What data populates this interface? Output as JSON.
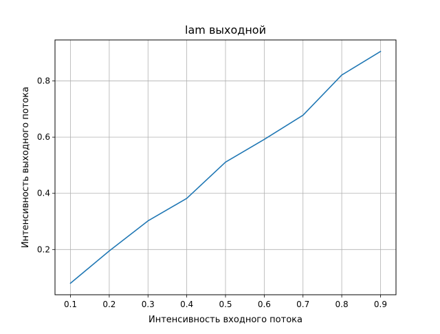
{
  "chart_data": {
    "type": "line",
    "title": "lam выходной",
    "xlabel": "Интенсивность входного потока",
    "ylabel": "Интенсивность выходного потока",
    "x": [
      0.1,
      0.2,
      0.3,
      0.4,
      0.5,
      0.6,
      0.7,
      0.8,
      0.9
    ],
    "series": [
      {
        "values": [
          0.08,
          0.195,
          0.302,
          0.382,
          0.511,
          0.592,
          0.678,
          0.821,
          0.905
        ],
        "color": "#1f77b4"
      }
    ],
    "x_ticks": [
      "0.1",
      "0.2",
      "0.3",
      "0.4",
      "0.5",
      "0.6",
      "0.7",
      "0.8",
      "0.9"
    ],
    "y_ticks": [
      "0.2",
      "0.4",
      "0.6",
      "0.8"
    ],
    "xlim": [
      0.06,
      0.94
    ],
    "ylim": [
      0.039,
      0.946
    ],
    "grid": true
  }
}
